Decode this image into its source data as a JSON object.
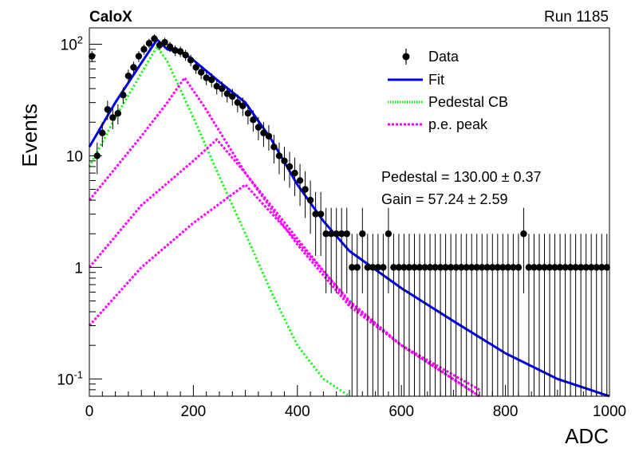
{
  "header": {
    "title": "CaloX",
    "run": "Run 1185"
  },
  "stats": {
    "pedestal": "Pedestal = 130.00 ± 0.37",
    "gain": "Gain = 57.24 ± 2.59"
  },
  "colors": {
    "data": "#000000",
    "fit": "#0000ff",
    "pedestal": "#00ff00",
    "pe": "#ff00ff"
  },
  "chart_data": {
    "type": "scatter",
    "xlabel": "ADC",
    "ylabel": "Events",
    "xlim": [
      0,
      1000
    ],
    "ylim": [
      0.07,
      140
    ],
    "yscale": "log",
    "x_ticks": [
      "0",
      "200",
      "400",
      "600",
      "800",
      "1000"
    ],
    "y_ticks": [
      "10^-1",
      "1",
      "10",
      "10^2"
    ],
    "legend": {
      "placement": "top-right",
      "entries": [
        "Data",
        "Fit",
        "Pedestal CB",
        "p.e. peak"
      ]
    },
    "series": [
      {
        "name": "Data",
        "style": "points-with-errorbars",
        "x": [
          5,
          15,
          25,
          35,
          45,
          55,
          65,
          75,
          85,
          95,
          105,
          115,
          125,
          135,
          145,
          155,
          165,
          175,
          185,
          195,
          205,
          215,
          225,
          235,
          245,
          255,
          265,
          275,
          285,
          295,
          305,
          315,
          325,
          335,
          345,
          355,
          365,
          375,
          385,
          395,
          405,
          415,
          425,
          435,
          445,
          455,
          465,
          475,
          485,
          495,
          505,
          515,
          525,
          535,
          545,
          555,
          565,
          575,
          585,
          595,
          605,
          615,
          625,
          635,
          645,
          655,
          665,
          675,
          685,
          695,
          705,
          715,
          725,
          735,
          745,
          755,
          765,
          775,
          785,
          795,
          805,
          815,
          825,
          835,
          845,
          855,
          865,
          875,
          885,
          895,
          905,
          915,
          925,
          935,
          945,
          955,
          965,
          975,
          985,
          995
        ],
        "y": [
          78,
          10,
          16,
          26,
          22,
          24,
          35,
          52,
          62,
          78,
          90,
          102,
          112,
          98,
          104,
          95,
          88,
          86,
          80,
          72,
          62,
          56,
          50,
          48,
          42,
          40,
          36,
          34,
          30,
          28,
          24,
          21,
          18,
          16,
          15,
          12,
          10,
          9,
          8,
          7,
          6,
          5,
          4,
          3,
          3,
          2,
          2,
          2,
          2,
          2,
          1,
          1,
          2,
          1,
          1,
          1,
          1,
          2,
          1,
          1,
          1,
          1,
          1,
          1,
          1,
          1,
          1,
          1,
          1,
          1,
          1,
          1,
          1,
          1,
          1,
          1,
          1,
          1,
          1,
          1,
          1,
          1,
          1,
          2,
          1,
          1,
          1,
          1,
          1,
          1,
          1,
          1,
          1,
          1,
          1,
          1,
          1,
          1,
          1,
          1
        ]
      },
      {
        "name": "Fit",
        "style": "solid",
        "x": [
          0,
          50,
          100,
          130,
          150,
          180,
          200,
          250,
          300,
          350,
          400,
          450,
          500,
          600,
          700,
          800,
          900,
          1000
        ],
        "y": [
          12,
          30,
          68,
          110,
          90,
          84,
          72,
          46,
          30,
          14,
          5.5,
          2.6,
          1.4,
          0.65,
          0.33,
          0.17,
          0.1,
          0.07
        ]
      },
      {
        "name": "Pedestal CB",
        "style": "dotted",
        "x": [
          0,
          50,
          100,
          130,
          150,
          200,
          250,
          300,
          350,
          400,
          450,
          500
        ],
        "y": [
          8,
          22,
          55,
          95,
          70,
          22,
          6.5,
          2,
          0.6,
          0.2,
          0.1,
          0.07
        ]
      },
      {
        "name": "p.e. peak",
        "style": "dotted",
        "x": [
          0,
          100,
          150,
          183,
          220,
          300,
          400,
          500,
          600,
          750
        ],
        "y": [
          4,
          15,
          30,
          50,
          28,
          7,
          1.6,
          0.45,
          0.2,
          0.07
        ]
      },
      {
        "name": "p.e. peak",
        "style": "dotted",
        "x": [
          0,
          100,
          200,
          245,
          300,
          400,
          500,
          600,
          750
        ],
        "y": [
          1,
          3.6,
          9,
          14,
          7,
          1.8,
          0.48,
          0.2,
          0.08
        ]
      },
      {
        "name": "p.e. peak",
        "style": "dotted",
        "x": [
          0,
          100,
          200,
          300,
          400,
          500,
          600,
          750
        ],
        "y": [
          0.3,
          1,
          2.5,
          5.5,
          1.7,
          0.5,
          0.2,
          0.07
        ]
      }
    ]
  }
}
